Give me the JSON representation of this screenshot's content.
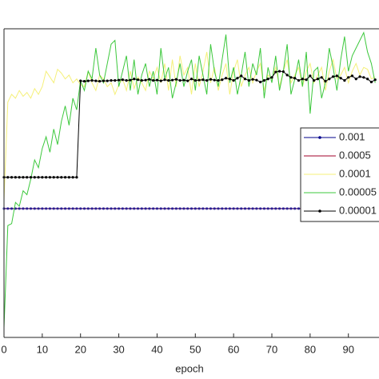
{
  "chart_data": {
    "type": "line",
    "x_label": "epoch",
    "x": [
      0,
      1,
      2,
      3,
      4,
      5,
      6,
      7,
      8,
      9,
      10,
      11,
      12,
      13,
      14,
      15,
      16,
      17,
      18,
      19,
      20,
      21,
      22,
      23,
      24,
      25,
      26,
      27,
      28,
      29,
      30,
      31,
      32,
      33,
      34,
      35,
      36,
      37,
      38,
      39,
      40,
      41,
      42,
      43,
      44,
      45,
      46,
      47,
      48,
      49,
      50,
      51,
      52,
      53,
      54,
      55,
      56,
      57,
      58,
      59,
      60,
      61,
      62,
      63,
      64,
      65,
      66,
      67,
      68,
      69,
      70,
      71,
      72,
      73,
      74,
      75,
      76,
      77,
      78,
      79,
      80,
      81,
      82,
      83,
      84,
      85,
      86,
      87,
      88,
      89,
      90,
      91,
      92,
      93,
      94,
      95,
      96,
      97
    ],
    "xlim": [
      0,
      98
    ],
    "xticks": [
      0,
      10,
      20,
      30,
      40,
      50,
      60,
      70,
      80,
      90
    ],
    "ylim": [
      0,
      8
    ],
    "series": [
      {
        "name": "0.001",
        "color": "#00008b",
        "marker": true,
        "values": [
          3.34,
          3.34,
          3.34,
          3.34,
          3.34,
          3.34,
          3.34,
          3.34,
          3.34,
          3.34,
          3.34,
          3.34,
          3.34,
          3.34,
          3.34,
          3.34,
          3.34,
          3.34,
          3.34,
          3.34,
          3.34,
          3.34,
          3.34,
          3.34,
          3.34,
          3.34,
          3.34,
          3.34,
          3.34,
          3.34,
          3.34,
          3.34,
          3.34,
          3.34,
          3.34,
          3.34,
          3.34,
          3.34,
          3.34,
          3.34,
          3.34,
          3.34,
          3.34,
          3.34,
          3.34,
          3.34,
          3.34,
          3.34,
          3.34,
          3.34,
          3.34,
          3.34,
          3.34,
          3.34,
          3.34,
          3.34,
          3.34,
          3.34,
          3.34,
          3.34,
          3.34,
          3.34,
          3.34,
          3.34,
          3.34,
          3.34,
          3.34,
          3.34,
          3.34,
          3.34,
          3.34,
          3.34,
          3.34,
          3.34,
          3.34,
          3.34,
          3.34,
          3.34,
          3.34,
          3.34,
          3.34,
          3.34,
          3.34,
          3.34,
          3.34,
          3.34,
          3.34,
          3.34,
          3.34,
          3.34,
          3.34,
          3.34,
          3.34,
          3.34,
          3.34,
          3.34,
          3.34,
          3.34
        ]
      },
      {
        "name": "0.0005",
        "color": "#a0002a",
        "marker": false,
        "values": [
          3.34,
          3.34,
          3.34,
          3.34,
          3.34,
          3.34,
          3.34,
          3.34,
          3.34,
          3.34,
          3.34,
          3.34,
          3.34,
          3.34,
          3.34,
          3.34,
          3.34,
          3.34,
          3.34,
          3.34,
          3.34,
          3.34,
          3.34,
          3.34,
          3.34,
          3.34,
          3.34,
          3.34,
          3.34,
          3.34,
          3.34,
          3.34,
          3.34,
          3.34,
          3.34,
          3.34,
          3.34,
          3.34,
          3.34,
          3.34,
          3.34,
          3.34,
          3.34,
          3.34,
          3.34,
          3.34,
          3.34,
          3.34,
          3.34,
          3.34,
          3.34,
          3.34,
          3.34,
          3.34,
          3.34,
          3.34,
          3.34,
          3.34,
          3.34,
          3.34,
          3.34,
          3.34,
          3.34,
          3.34,
          3.34,
          3.34,
          3.34,
          3.34,
          3.34,
          3.34,
          3.34,
          3.34,
          3.34,
          3.34,
          3.34,
          3.34,
          3.34,
          3.34,
          3.34,
          3.34,
          3.34,
          3.34,
          3.34,
          3.34,
          3.34,
          3.34,
          3.34,
          3.34,
          3.34,
          3.34,
          3.34,
          3.34,
          3.34,
          3.34,
          3.34,
          3.34,
          3.34,
          3.34
        ]
      },
      {
        "name": "0.0001",
        "color": "#f5f07a",
        "marker": false,
        "values": [
          3.56,
          6.1,
          6.3,
          6.2,
          6.4,
          6.25,
          6.35,
          6.2,
          6.45,
          6.3,
          6.5,
          6.9,
          6.75,
          6.6,
          6.95,
          6.85,
          6.7,
          6.8,
          6.6,
          6.7,
          6.55,
          6.5,
          6.9,
          6.6,
          6.4,
          6.8,
          6.7,
          6.5,
          6.6,
          6.3,
          6.55,
          6.7,
          6.4,
          6.9,
          6.45,
          6.75,
          6.6,
          6.4,
          6.9,
          6.7,
          7.0,
          6.6,
          7.1,
          6.4,
          7.2,
          6.5,
          7.3,
          6.8,
          7.0,
          6.3,
          7.1,
          6.5,
          6.9,
          7.4,
          6.6,
          7.0,
          6.4,
          6.8,
          7.1,
          6.3,
          6.9,
          7.2,
          6.5,
          6.8,
          7.0,
          6.6,
          6.9,
          7.1,
          6.4,
          6.8,
          6.7,
          7.0,
          6.5,
          6.9,
          7.2,
          6.6,
          6.8,
          7.0,
          6.5,
          6.9,
          7.1,
          6.6,
          6.8,
          7.0,
          6.4,
          6.9,
          7.2,
          6.7,
          6.8,
          7.0,
          6.6,
          6.9,
          7.1,
          6.8,
          7.0,
          6.95,
          6.7,
          6.75
        ]
      },
      {
        "name": "0.00005",
        "color": "#3cc83c",
        "marker": false,
        "values": [
          0.25,
          2.9,
          2.95,
          3.5,
          3.4,
          3.8,
          3.7,
          4.1,
          4.6,
          4.4,
          4.9,
          5.2,
          4.8,
          5.4,
          5.0,
          5.6,
          6.0,
          5.5,
          6.2,
          5.9,
          6.65,
          6.4,
          6.9,
          6.7,
          7.5,
          6.8,
          6.6,
          7.1,
          7.6,
          7.7,
          6.5,
          6.9,
          7.3,
          6.4,
          7.2,
          6.3,
          6.8,
          7.1,
          6.5,
          6.9,
          6.3,
          7.5,
          6.7,
          7.0,
          6.2,
          6.6,
          7.1,
          6.5,
          6.9,
          7.2,
          6.4,
          7.3,
          6.8,
          6.3,
          7.6,
          6.9,
          6.5,
          7.2,
          7.85,
          6.6,
          7.0,
          6.3,
          6.8,
          7.4,
          6.5,
          7.1,
          6.8,
          7.5,
          6.2,
          7.0,
          6.6,
          7.3,
          6.4,
          6.9,
          7.6,
          6.3,
          6.7,
          7.2,
          6.5,
          7.4,
          5.8,
          6.9,
          7.0,
          6.2,
          6.6,
          7.5,
          7.0,
          6.4,
          7.2,
          7.8,
          6.9,
          7.3,
          7.5,
          7.7,
          7.9,
          7.4,
          7.1,
          6.6
        ]
      },
      {
        "name": "0.00001",
        "color": "#000000",
        "marker": true,
        "values": [
          4.15,
          4.15,
          4.15,
          4.15,
          4.15,
          4.15,
          4.15,
          4.15,
          4.15,
          4.15,
          4.15,
          4.15,
          4.15,
          4.15,
          4.15,
          4.15,
          4.15,
          4.15,
          4.15,
          4.15,
          6.65,
          6.64,
          6.65,
          6.66,
          6.65,
          6.64,
          6.65,
          6.65,
          6.66,
          6.66,
          6.67,
          6.68,
          6.66,
          6.67,
          6.7,
          6.68,
          6.66,
          6.67,
          6.69,
          6.66,
          6.67,
          6.65,
          6.68,
          6.66,
          6.67,
          6.69,
          6.66,
          6.67,
          6.65,
          6.7,
          6.66,
          6.67,
          6.68,
          6.66,
          6.69,
          6.67,
          6.66,
          6.68,
          6.72,
          6.7,
          6.66,
          6.72,
          6.78,
          6.7,
          6.66,
          6.69,
          6.67,
          6.62,
          6.66,
          6.7,
          6.74,
          6.88,
          6.9,
          6.89,
          6.8,
          6.74,
          6.72,
          6.66,
          6.7,
          6.68,
          6.78,
          6.66,
          6.7,
          6.74,
          6.64,
          6.7,
          6.76,
          6.78,
          6.72,
          6.66,
          6.74,
          6.78,
          6.7,
          6.76,
          6.74,
          6.7,
          6.62,
          6.68
        ]
      }
    ]
  }
}
